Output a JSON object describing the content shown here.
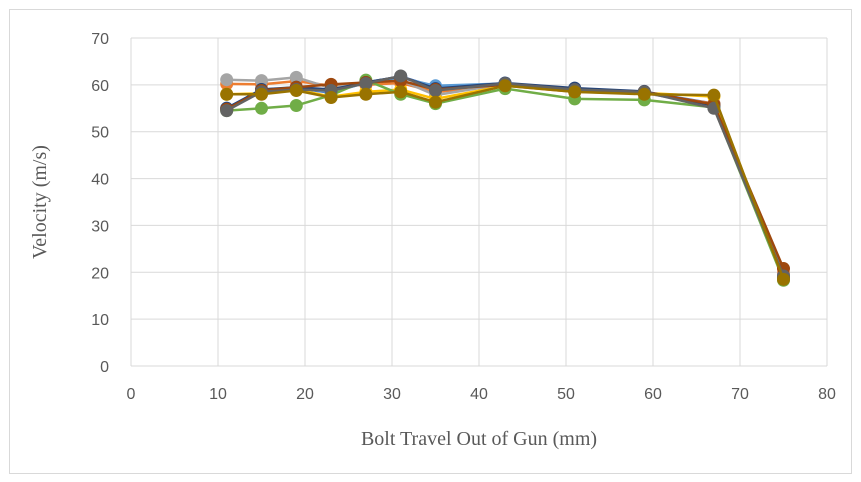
{
  "chart_data": {
    "type": "line",
    "title": "",
    "xlabel": "Bolt Travel Out of Gun (mm)",
    "ylabel": "Velocity (m/s)",
    "xlim": [
      0,
      80
    ],
    "ylim": [
      0,
      70
    ],
    "xticks": [
      0,
      10,
      20,
      30,
      40,
      50,
      60,
      70,
      80
    ],
    "yticks": [
      0,
      10,
      20,
      30,
      40,
      50,
      60,
      70
    ],
    "grid": true,
    "legend": "none",
    "x": [
      11,
      15,
      19,
      23,
      27,
      31,
      35,
      43,
      51,
      59,
      67,
      75
    ],
    "series": [
      {
        "color": "#4472c4",
        "values": [
          55.0,
          59.0,
          59.3,
          58.3,
          60.5,
          61.8,
          59.5,
          60.3,
          59.2,
          58.5,
          56.0,
          19.5
        ]
      },
      {
        "color": "#ed7d31",
        "values": [
          60.2,
          60.1,
          60.8,
          59.8,
          60.0,
          60.4,
          58.5,
          59.8,
          58.5,
          58.2,
          56.0,
          19.8
        ]
      },
      {
        "color": "#a5a5a5",
        "values": [
          61.1,
          60.9,
          61.6,
          59.3,
          60.7,
          61.0,
          57.8,
          60.2,
          59.0,
          58.3,
          55.5,
          19.2
        ]
      },
      {
        "color": "#ffc000",
        "values": [
          58.0,
          58.2,
          59.0,
          57.5,
          58.5,
          59.0,
          57.0,
          59.8,
          58.8,
          58.3,
          57.5,
          18.8
        ]
      },
      {
        "color": "#5b9bd5",
        "values": [
          55.0,
          59.0,
          59.3,
          58.5,
          60.4,
          61.5,
          59.8,
          60.3,
          59.0,
          58.3,
          55.8,
          19.3
        ]
      },
      {
        "color": "#70ad47",
        "values": [
          54.5,
          55.0,
          55.6,
          57.8,
          61.0,
          58.0,
          56.0,
          59.2,
          57.0,
          56.8,
          55.2,
          18.3
        ]
      },
      {
        "color": "#264478",
        "values": [
          55.0,
          59.0,
          59.5,
          59.0,
          60.5,
          61.8,
          59.2,
          60.4,
          59.3,
          58.6,
          55.6,
          19.0
        ]
      },
      {
        "color": "#9e480e",
        "values": [
          54.8,
          58.8,
          59.5,
          60.1,
          60.5,
          60.9,
          59.0,
          60.0,
          58.8,
          58.5,
          55.8,
          20.8
        ]
      },
      {
        "color": "#636363",
        "values": [
          54.5,
          58.5,
          59.0,
          58.8,
          60.3,
          61.9,
          58.8,
          60.3,
          59.0,
          58.5,
          55.0,
          19.2
        ]
      },
      {
        "color": "#997300",
        "values": [
          58.0,
          58.0,
          58.8,
          57.3,
          58.0,
          58.5,
          56.3,
          59.8,
          58.5,
          58.0,
          57.8,
          18.5
        ]
      }
    ]
  }
}
